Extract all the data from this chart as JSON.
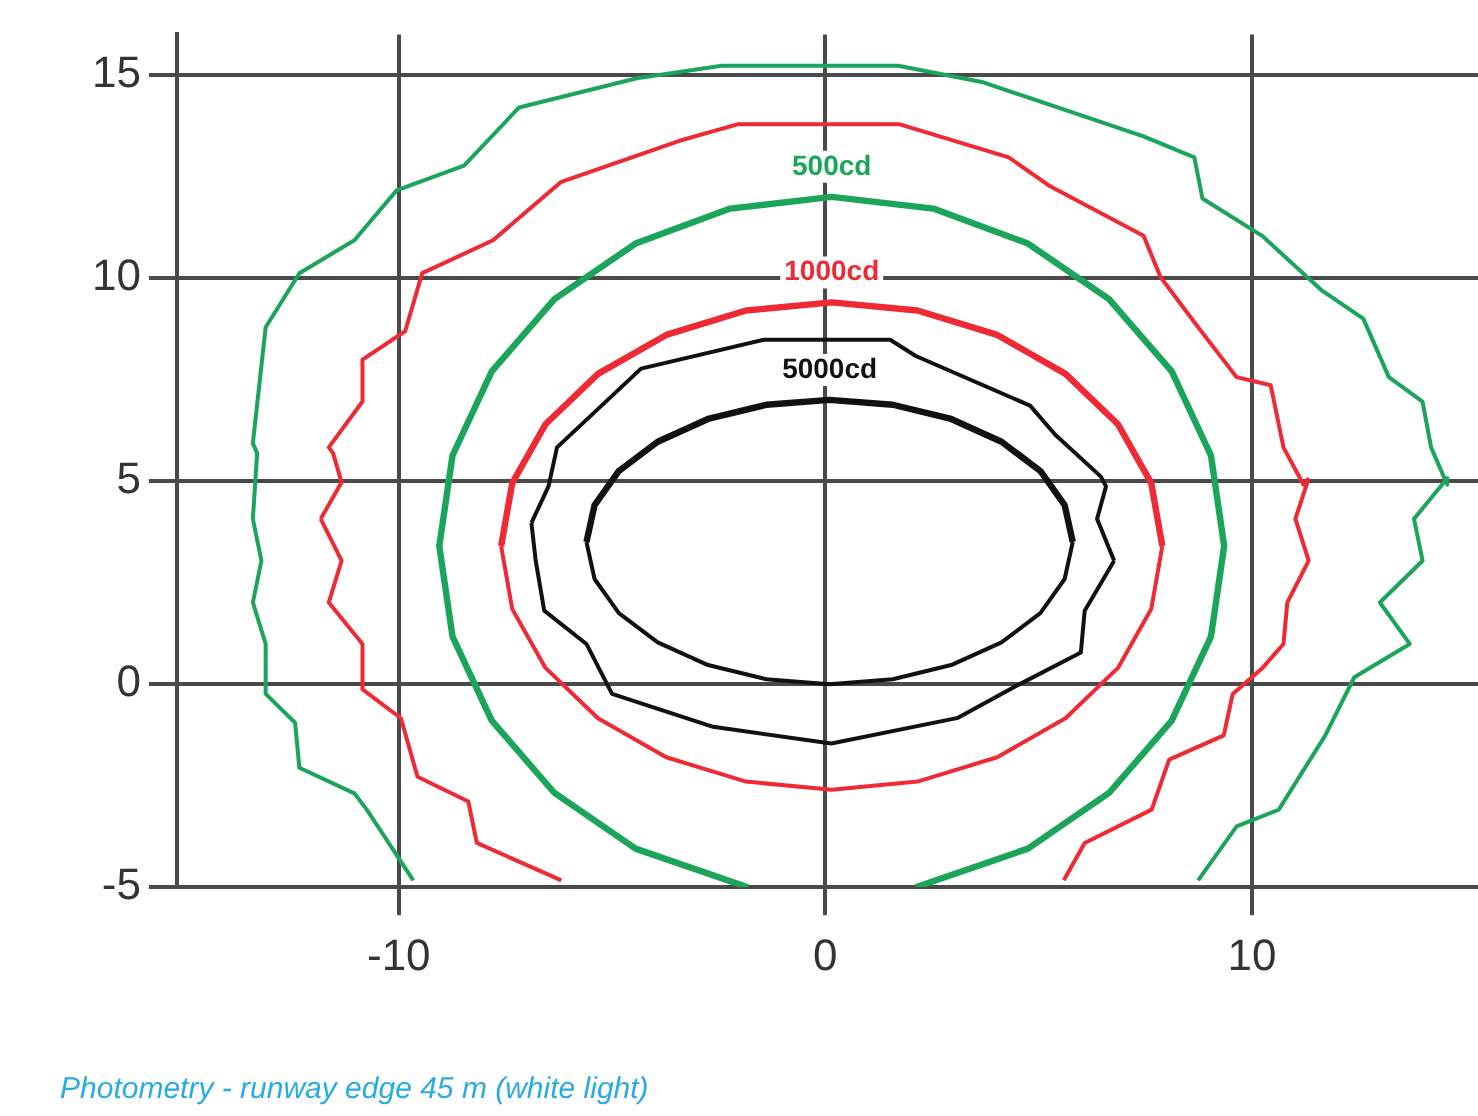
{
  "chart_data": {
    "type": "line",
    "xlim": [
      -15.2,
      15.3
    ],
    "ylim": [
      -5,
      16
    ],
    "xticks": [
      -10,
      0,
      10
    ],
    "yticks": [
      -5,
      0,
      5,
      10,
      15
    ],
    "grid": true,
    "legend": false,
    "marker": "none",
    "line_style": "solid",
    "annotations": [
      "Photometry - runway edge 45 m (white light)"
    ],
    "series": [
      {
        "name": "5000cd",
        "color": "#111111",
        "x": [
          -5.6,
          -5.41,
          -4.84,
          -3.93,
          -2.75,
          -1.38,
          0.1,
          1.58,
          2.95,
          4.13,
          5.04,
          5.61,
          5.8
        ],
        "values": [
          3.5,
          4.41,
          5.25,
          5.97,
          6.53,
          6.88,
          7.0,
          6.88,
          6.53,
          5.97,
          5.25,
          4.41,
          3.5
        ]
      },
      {
        "color": "#111111",
        "x": [
          -5.6,
          -5.41,
          -4.84,
          -3.93,
          -2.75,
          -1.38,
          0.1,
          1.58,
          2.95,
          4.13,
          5.04,
          5.61,
          5.8
        ],
        "values": [
          3.5,
          2.59,
          1.75,
          1.03,
          0.47,
          0.12,
          0.0,
          0.12,
          0.47,
          1.03,
          1.75,
          2.59,
          3.5
        ]
      },
      {
        "color": "#111111",
        "x": [
          -6.89,
          -6.49,
          -6.29,
          -4.32,
          -1.44,
          1.52,
          2.12,
          4.8,
          5.39,
          6.46,
          6.58,
          6.37,
          6.77
        ],
        "values": [
          3.97,
          4.87,
          5.83,
          7.77,
          8.48,
          8.48,
          8.08,
          6.86,
          6.14,
          5.11,
          4.87,
          4.07,
          3.04
        ]
      },
      {
        "color": "#111111",
        "x": [
          -6.89,
          -6.79,
          -6.59,
          -5.6,
          -5.0,
          -2.63,
          0.14,
          3.11,
          4.5,
          5.99,
          6.08,
          6.77
        ],
        "values": [
          3.97,
          3.04,
          1.81,
          0.99,
          -0.24,
          -1.05,
          -1.46,
          -0.83,
          -0.03,
          0.78,
          1.81,
          3.04
        ]
      },
      {
        "name": "1000cd",
        "color": "#ee2a35",
        "x": [
          -7.6,
          -7.34,
          -6.56,
          -5.33,
          -3.73,
          -1.86,
          0.15,
          2.16,
          4.03,
          5.63,
          6.86,
          7.64,
          7.9
        ],
        "values": [
          3.4,
          4.95,
          6.4,
          7.64,
          8.6,
          9.2,
          9.4,
          9.2,
          8.6,
          7.64,
          6.4,
          4.95,
          3.4
        ]
      },
      {
        "color": "#ee2a35",
        "x": [
          -7.6,
          -7.34,
          -6.56,
          -5.33,
          -3.73,
          -1.86,
          0.15,
          2.16,
          4.03,
          5.63,
          6.86,
          7.64,
          7.9
        ],
        "values": [
          3.4,
          1.85,
          0.4,
          -0.84,
          -1.8,
          -2.4,
          -2.6,
          -2.4,
          -1.8,
          -0.84,
          0.4,
          1.85,
          3.4
        ]
      },
      {
        "color": "#ee2a35",
        "x": [
          -6.19,
          -8.17,
          -8.37,
          -9.56,
          -9.95,
          -10.85,
          -10.85,
          -11.64,
          -11.34,
          -11.83
        ],
        "values": [
          -4.83,
          -3.91,
          -2.89,
          -2.28,
          -0.84,
          -0.13,
          0.99,
          2.01,
          3.04,
          4.07
        ]
      },
      {
        "color": "#ee2a35",
        "x": [
          -11.83,
          -11.34,
          -11.54,
          -11.64,
          -10.85,
          -10.85,
          -9.85,
          -9.45,
          -7.79,
          -6.19,
          -3.42,
          -2.04,
          1.73,
          4.3,
          5.27,
          7.46,
          7.86,
          8.74,
          9.64,
          10.44,
          10.74,
          11.21,
          11.33
        ],
        "values": [
          4.07,
          4.97,
          5.69,
          5.83,
          6.96,
          7.99,
          8.69,
          10.12,
          10.93,
          12.37,
          13.38,
          13.79,
          13.79,
          12.97,
          12.26,
          11.04,
          10.02,
          8.79,
          7.56,
          7.36,
          5.83,
          4.91,
          5.07
        ]
      },
      {
        "color": "#ee2a35",
        "x": [
          11.33,
          11.02,
          11.33,
          10.83,
          10.74,
          10.24,
          9.55,
          9.34,
          8.06,
          7.65,
          6.08,
          5.59
        ],
        "values": [
          5.07,
          4.07,
          3.04,
          2.01,
          0.99,
          0.39,
          -0.24,
          -1.26,
          -1.86,
          -3.09,
          -3.91,
          -4.83
        ]
      },
      {
        "name": "500cd",
        "color": "#1aa55a",
        "x": [
          2.12,
          4.75,
          6.65,
          8.12,
          9.04,
          9.35,
          9.04,
          8.12,
          6.65,
          4.75,
          2.53,
          0.15,
          -2.23,
          -4.45,
          -6.35,
          -7.82,
          -8.74,
          -9.05,
          -8.74,
          -7.82,
          -6.35,
          -4.45,
          -1.82
        ],
        "values": [
          -5.0,
          -4.05,
          -2.68,
          -0.9,
          1.17,
          3.4,
          5.63,
          7.7,
          9.48,
          10.85,
          11.71,
          12.0,
          11.71,
          10.85,
          9.48,
          7.7,
          5.63,
          3.4,
          1.17,
          -0.9,
          -2.68,
          -4.05,
          -5.0
        ]
      },
      {
        "color": "#1aa55a",
        "x": [
          -9.66,
          -10.75,
          -11.04,
          -12.33,
          -12.43,
          -13.12,
          -13.12,
          -13.42,
          -13.22,
          -13.42,
          -13.32,
          -13.42,
          -13.12,
          -12.33,
          -11.04,
          -10.05,
          -8.47,
          -7.18,
          -4.42,
          -2.43,
          1.71,
          3.7,
          7.46,
          8.65,
          8.84,
          10.24,
          11.62,
          12.61,
          13.21,
          14.0,
          14.2,
          14.58,
          14.58,
          13.8,
          14.0,
          13.0,
          13.7,
          12.4,
          11.72,
          10.63,
          9.64,
          8.74
        ],
        "values": [
          -4.83,
          -3.09,
          -2.69,
          -2.06,
          -0.95,
          -0.24,
          0.99,
          2.01,
          3.04,
          4.07,
          5.69,
          5.93,
          8.79,
          10.12,
          10.93,
          12.16,
          12.77,
          14.2,
          14.92,
          15.23,
          15.23,
          14.82,
          13.49,
          12.97,
          11.96,
          11.04,
          9.71,
          9.0,
          7.56,
          6.96,
          5.83,
          4.91,
          5.07,
          4.07,
          3.04,
          2.01,
          0.99,
          0.17,
          -1.26,
          -3.09,
          -3.5,
          -4.83
        ]
      }
    ]
  }
}
